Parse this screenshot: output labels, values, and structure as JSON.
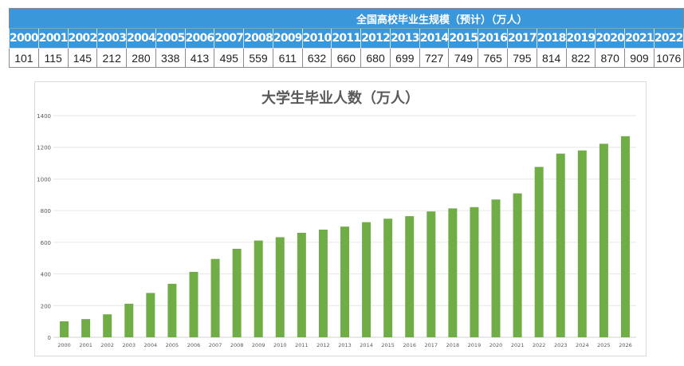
{
  "table": {
    "title": "全国高校毕业生规模（预计）（万人）",
    "years": [
      "2000",
      "2001",
      "2002",
      "2003",
      "2004",
      "2005",
      "2006",
      "2007",
      "2008",
      "2009",
      "2010",
      "2011",
      "2012",
      "2013",
      "2014",
      "2015",
      "2016",
      "2017",
      "2018",
      "2019",
      "2020",
      "2021",
      "2022"
    ],
    "values": [
      "101",
      "115",
      "145",
      "212",
      "280",
      "338",
      "413",
      "495",
      "559",
      "611",
      "632",
      "660",
      "680",
      "699",
      "727",
      "749",
      "765",
      "795",
      "814",
      "822",
      "870",
      "909",
      "1076"
    ],
    "header_color": "#3a97d9"
  },
  "chart_data": {
    "type": "bar",
    "title": "大学生毕业人数（万人）",
    "xlabel": "",
    "ylabel": "",
    "categories": [
      "2000",
      "2001",
      "2002",
      "2003",
      "2004",
      "2005",
      "2006",
      "2007",
      "2008",
      "2009",
      "2010",
      "2011",
      "2012",
      "2013",
      "2014",
      "2015",
      "2016",
      "2017",
      "2018",
      "2019",
      "2020",
      "2021",
      "2022",
      "2023",
      "2024",
      "2025",
      "2026"
    ],
    "values": [
      101,
      115,
      145,
      212,
      280,
      338,
      413,
      495,
      559,
      611,
      632,
      660,
      680,
      699,
      727,
      749,
      765,
      795,
      814,
      822,
      870,
      909,
      1076,
      1160,
      1180,
      1222,
      1270
    ],
    "ylim": [
      0,
      1400
    ],
    "yticks": [
      "0",
      "200",
      "400",
      "600",
      "800",
      "1000",
      "1200",
      "1400"
    ],
    "grid": true,
    "legend": "none",
    "bar_color": "#70ad47"
  }
}
